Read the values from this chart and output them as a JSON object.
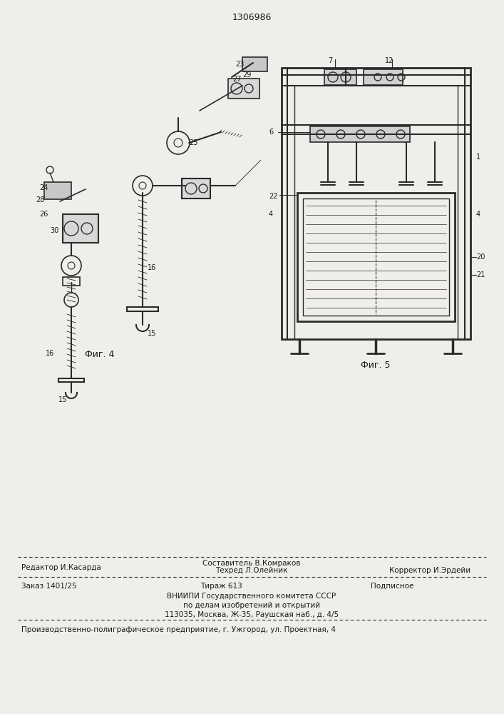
{
  "patent_number": "1306986",
  "bg_color": "#f0eeeb",
  "line_color": "#2a2a2a",
  "text_color": "#1a1a1a",
  "fig4_caption": "Фиг. 4",
  "fig5_caption": "Фиг. 5",
  "footer_line1_left": "Редактор И.Касарда",
  "footer_line1_center_top": "Составитель В.Комраков",
  "footer_line1_center": "Техред Л.Олейник",
  "footer_line1_right": "Корректор И.Эрдейи",
  "footer_line2_left": "Заказ 1401/25",
  "footer_line2_center": "Тираж 613",
  "footer_line2_right": "Подписное",
  "footer_line3": "ВНИИПИ Государственного комитета СССР",
  "footer_line4": "по делам изобретений и открытий",
  "footer_line5": "113035, Москва, Ж-35, Раушская наб., д. 4/5",
  "footer_last": "Производственно-полиграфическое предприятие, г. Ужгород, ул. Проектная, 4"
}
